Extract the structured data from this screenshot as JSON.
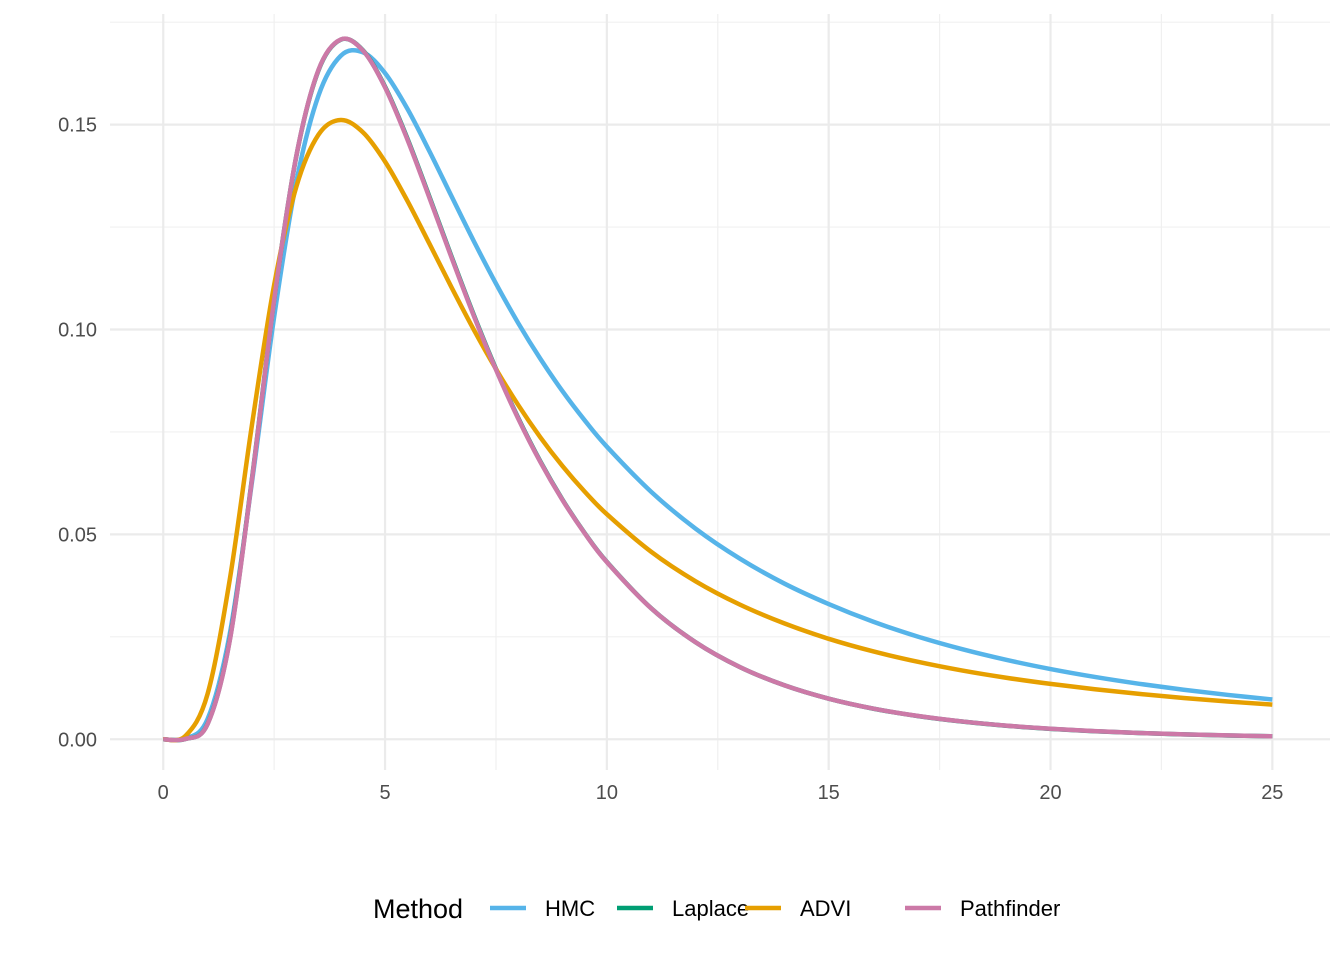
{
  "chart_data": {
    "type": "line",
    "title": "",
    "xlabel": "",
    "ylabel": "",
    "xlim": [
      -1.2,
      26.3
    ],
    "ylim": [
      -0.0075,
      0.177
    ],
    "x_ticks": [
      0,
      5,
      10,
      15,
      20,
      25
    ],
    "x_tick_labels": [
      "0",
      "5",
      "10",
      "15",
      "20",
      "25"
    ],
    "y_ticks": [
      0.0,
      0.05,
      0.1,
      0.15
    ],
    "y_tick_labels": [
      "0.00",
      "0.05",
      "0.10",
      "0.15"
    ],
    "grid": true,
    "legend_position": "bottom",
    "legend_title": "Method",
    "x": [
      0,
      0.5,
      1,
      1.5,
      2,
      2.5,
      3,
      3.5,
      4,
      4.5,
      5,
      5.5,
      6,
      6.5,
      7,
      7.5,
      8,
      8.5,
      9,
      9.5,
      10,
      11,
      12,
      13,
      14,
      15,
      16,
      17,
      18,
      19,
      20,
      21,
      22,
      23,
      24,
      25
    ],
    "series": [
      {
        "name": "HMC",
        "color": "#56B4E9",
        "values": [
          0,
          0.00019,
          0.00495,
          0.02575,
          0.06277,
          0.10309,
          0.13604,
          0.15712,
          0.16679,
          0.16766,
          0.16257,
          0.15394,
          0.14351,
          0.13248,
          0.12157,
          0.11121,
          0.1016,
          0.09286,
          0.08494,
          0.07784,
          0.07141,
          0.06038,
          0.0514,
          0.04407,
          0.038,
          0.033,
          0.0287,
          0.02508,
          0.02201,
          0.01939,
          0.01714,
          0.01521,
          0.01354,
          0.01208,
          0.01082,
          0.00971
        ]
      },
      {
        "name": "Laplace",
        "color": "#009E73",
        "values": [
          0,
          8e-05,
          0.00377,
          0.02431,
          0.06362,
          0.10725,
          0.14229,
          0.16325,
          0.17072,
          0.16817,
          0.15928,
          0.14672,
          0.13243,
          0.11777,
          0.10359,
          0.09041,
          0.07846,
          0.06782,
          0.05848,
          0.05034,
          0.04329,
          0.03197,
          0.02368,
          0.01761,
          0.01317,
          0.0099,
          0.00748,
          0.00568,
          0.00433,
          0.00331,
          0.00255,
          0.00197,
          0.00153,
          0.00119,
          0.00093,
          0.00073
        ]
      },
      {
        "name": "ADVI",
        "color": "#E69F00",
        "values": [
          0,
          0.00081,
          0.01108,
          0.03899,
          0.07673,
          0.11089,
          0.13484,
          0.14755,
          0.15112,
          0.14815,
          0.14098,
          0.13147,
          0.12094,
          0.11026,
          0.09997,
          0.09036,
          0.08159,
          0.0737,
          0.06667,
          0.06043,
          0.05492,
          0.04575,
          0.03856,
          0.03286,
          0.02828,
          0.02452,
          0.02146,
          0.01893,
          0.0168,
          0.01502,
          0.01351,
          0.0122,
          0.01107,
          0.01008,
          0.00922,
          0.00845
        ]
      },
      {
        "name": "Pathfinder",
        "color": "#CC79A7",
        "values": [
          0,
          8e-05,
          0.00372,
          0.0241,
          0.06338,
          0.10717,
          0.14236,
          0.16338,
          0.17077,
          0.1681,
          0.15909,
          0.14646,
          0.13214,
          0.11751,
          0.10335,
          0.0902,
          0.07829,
          0.06768,
          0.05838,
          0.05027,
          0.04323,
          0.03194,
          0.02367,
          0.01761,
          0.01318,
          0.00991,
          0.0075,
          0.0057,
          0.00435,
          0.00333,
          0.00256,
          0.00198,
          0.00154,
          0.0012,
          0.00094,
          0.00074
        ]
      }
    ]
  }
}
